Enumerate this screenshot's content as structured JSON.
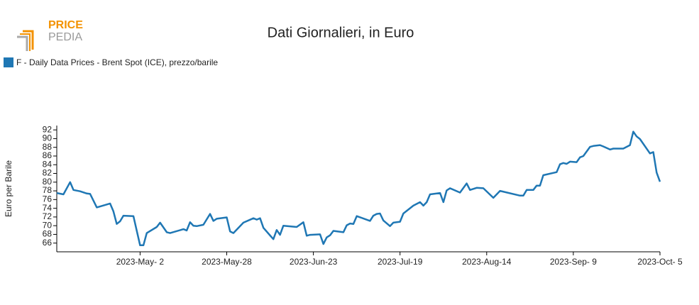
{
  "logo": {
    "top": "PRICE",
    "bottom": "PEDIA"
  },
  "chart_data": {
    "type": "line",
    "title": "Dati Giornalieri, in Euro",
    "y_label": "Euro per Barile",
    "x": [
      "2023-04-07",
      "2023-04-09",
      "2023-04-11",
      "2023-04-12",
      "2023-04-14",
      "2023-04-16",
      "2023-04-17",
      "2023-04-19",
      "2023-04-23",
      "2023-04-24",
      "2023-04-25",
      "2023-04-26",
      "2023-04-27",
      "2023-04-30",
      "2023-05-02",
      "2023-05-03",
      "2023-05-04",
      "2023-05-07",
      "2023-05-08",
      "2023-05-10",
      "2023-05-11",
      "2023-05-15",
      "2023-05-16",
      "2023-05-17",
      "2023-05-18",
      "2023-05-19",
      "2023-05-21",
      "2023-05-23",
      "2023-05-24",
      "2023-05-25",
      "2023-05-28",
      "2023-05-29",
      "2023-05-30",
      "2023-06-02",
      "2023-06-05",
      "2023-06-06",
      "2023-06-07",
      "2023-06-08",
      "2023-06-11",
      "2023-06-12",
      "2023-06-13",
      "2023-06-14",
      "2023-06-18",
      "2023-06-20",
      "2023-06-21",
      "2023-06-22",
      "2023-06-25",
      "2023-06-26",
      "2023-06-27",
      "2023-06-28",
      "2023-06-29",
      "2023-07-02",
      "2023-07-03",
      "2023-07-04",
      "2023-07-05",
      "2023-07-06",
      "2023-07-10",
      "2023-07-11",
      "2023-07-12",
      "2023-07-13",
      "2023-07-14",
      "2023-07-16",
      "2023-07-17",
      "2023-07-19",
      "2023-07-20",
      "2023-07-23",
      "2023-07-25",
      "2023-07-26",
      "2023-07-27",
      "2023-07-28",
      "2023-07-31",
      "2023-08-01",
      "2023-08-02",
      "2023-08-03",
      "2023-08-06",
      "2023-08-08",
      "2023-08-09",
      "2023-08-11",
      "2023-08-13",
      "2023-08-16",
      "2023-08-18",
      "2023-08-24",
      "2023-08-25",
      "2023-08-26",
      "2023-08-28",
      "2023-08-29",
      "2023-08-30",
      "2023-08-31",
      "2023-09-04",
      "2023-09-05",
      "2023-09-06",
      "2023-09-07",
      "2023-09-08",
      "2023-09-10",
      "2023-09-11",
      "2023-09-12",
      "2023-09-14",
      "2023-09-15",
      "2023-09-17",
      "2023-09-18",
      "2023-09-20",
      "2023-09-21",
      "2023-09-24",
      "2023-09-26",
      "2023-09-27",
      "2023-09-28",
      "2023-09-29",
      "2023-10-02",
      "2023-10-03",
      "2023-10-04",
      "2023-10-05"
    ],
    "series": [
      {
        "name": "F - Daily Data Prices - Brent Spot (ICE), prezzo/barile",
        "color": "#1f77b4",
        "values": [
          77.5,
          77.2,
          80.0,
          78.2,
          77.9,
          77.4,
          77.3,
          74.2,
          75.1,
          73.3,
          70.4,
          71.0,
          72.3,
          72.2,
          65.5,
          65.5,
          68.3,
          69.7,
          70.7,
          68.5,
          68.3,
          69.2,
          68.9,
          70.8,
          70.0,
          69.9,
          70.2,
          72.7,
          71.1,
          71.6,
          71.9,
          68.7,
          68.3,
          70.7,
          71.7,
          71.4,
          71.7,
          69.5,
          66.9,
          69.0,
          67.9,
          70.0,
          69.7,
          70.8,
          67.7,
          67.9,
          68.0,
          65.8,
          67.3,
          67.8,
          68.8,
          68.5,
          70.1,
          70.5,
          70.4,
          72.2,
          71.1,
          72.3,
          72.7,
          72.8,
          71.2,
          69.9,
          70.7,
          70.9,
          72.8,
          74.6,
          75.4,
          74.6,
          75.4,
          77.2,
          77.5,
          75.4,
          78.1,
          78.6,
          77.6,
          79.7,
          78.2,
          78.7,
          78.6,
          76.4,
          78.0,
          76.9,
          76.9,
          78.2,
          78.2,
          79.2,
          79.2,
          81.6,
          82.3,
          84.1,
          84.4,
          84.2,
          84.7,
          84.6,
          85.7,
          86.0,
          88.1,
          88.3,
          88.5,
          88.2,
          87.5,
          87.7,
          87.7,
          88.5,
          91.6,
          90.5,
          89.9,
          86.6,
          86.9,
          82.2,
          80.1
        ]
      }
    ],
    "xlim": [
      "2023-04-07",
      "2023-10-05"
    ],
    "xticks": [
      {
        "value": "2023-05-02",
        "label": "2023-May- 2"
      },
      {
        "value": "2023-05-28",
        "label": "2023-May-28"
      },
      {
        "value": "2023-06-23",
        "label": "2023-Jun-23"
      },
      {
        "value": "2023-07-19",
        "label": "2023-Jul-19"
      },
      {
        "value": "2023-08-14",
        "label": "2023-Aug-14"
      },
      {
        "value": "2023-09-09",
        "label": "2023-Sep- 9"
      },
      {
        "value": "2023-10-05",
        "label": "2023-Oct- 5"
      }
    ],
    "ylim": [
      64,
      93
    ],
    "yticks": [
      66,
      68,
      70,
      72,
      74,
      76,
      78,
      80,
      82,
      84,
      86,
      88,
      90,
      92
    ]
  }
}
